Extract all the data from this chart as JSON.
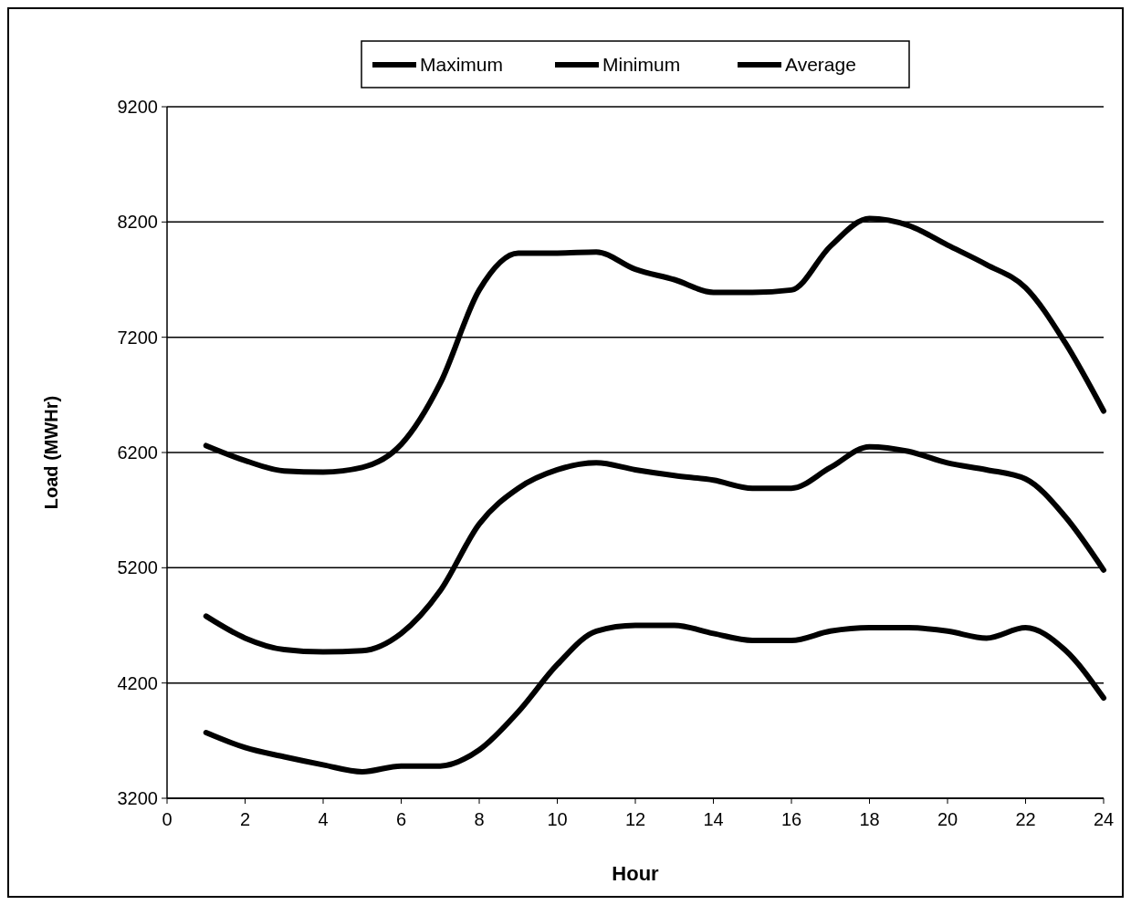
{
  "chart_data": {
    "type": "line",
    "xlabel": "Hour",
    "ylabel": "Load (MWHr)",
    "x": [
      1,
      2,
      3,
      4,
      5,
      6,
      7,
      8,
      9,
      10,
      11,
      12,
      13,
      14,
      15,
      16,
      17,
      18,
      19,
      20,
      21,
      22,
      23,
      24
    ],
    "xlim": [
      0,
      24
    ],
    "xticks": [
      0,
      2,
      4,
      6,
      8,
      10,
      12,
      14,
      16,
      18,
      20,
      22,
      24
    ],
    "ylim": [
      3200,
      9200
    ],
    "yticks": [
      3200,
      4200,
      5200,
      6200,
      7200,
      8200,
      9200
    ],
    "grid": "y",
    "legend": "top",
    "marker": "none",
    "line_style": "solid",
    "series": [
      {
        "name": "Maximum",
        "color": "#000000",
        "values": [
          6260,
          6130,
          6040,
          6030,
          6070,
          6270,
          6800,
          7610,
          7930,
          7930,
          7940,
          7790,
          7700,
          7590,
          7590,
          7610,
          7990,
          8230,
          8170,
          8000,
          7830,
          7630,
          7160,
          6560
        ]
      },
      {
        "name": "Minimum",
        "color": "#000000",
        "values": [
          3770,
          3640,
          3560,
          3490,
          3430,
          3480,
          3480,
          3620,
          3950,
          4360,
          4650,
          4700,
          4700,
          4630,
          4570,
          4570,
          4650,
          4680,
          4680,
          4650,
          4590,
          4680,
          4490,
          4070
        ]
      },
      {
        "name": "Average",
        "color": "#000000",
        "values": [
          4780,
          4590,
          4490,
          4470,
          4480,
          4630,
          5000,
          5580,
          5890,
          6050,
          6110,
          6050,
          6000,
          5960,
          5890,
          5890,
          6070,
          6250,
          6210,
          6110,
          6050,
          5970,
          5650,
          5180
        ]
      }
    ]
  }
}
